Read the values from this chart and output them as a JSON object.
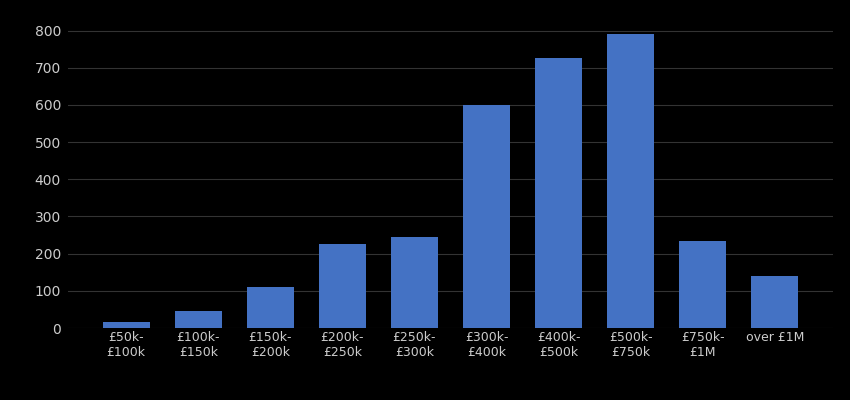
{
  "categories": [
    "£50k-\n£100k",
    "£100k-\n£150k",
    "£150k-\n£200k",
    "£200k-\n£250k",
    "£250k-\n£300k",
    "£300k-\n£400k",
    "£400k-\n£500k",
    "£500k-\n£750k",
    "£750k-\n£1M",
    "over £1M"
  ],
  "values": [
    15,
    45,
    110,
    225,
    245,
    600,
    725,
    790,
    235,
    140
  ],
  "bar_color": "#4472C4",
  "background_color": "#000000",
  "text_color": "#cccccc",
  "grid_color": "#333333",
  "ylim": [
    0,
    850
  ],
  "yticks": [
    0,
    100,
    200,
    300,
    400,
    500,
    600,
    700,
    800
  ],
  "bar_width": 0.65,
  "tick_fontsize": 10,
  "label_fontsize": 9
}
